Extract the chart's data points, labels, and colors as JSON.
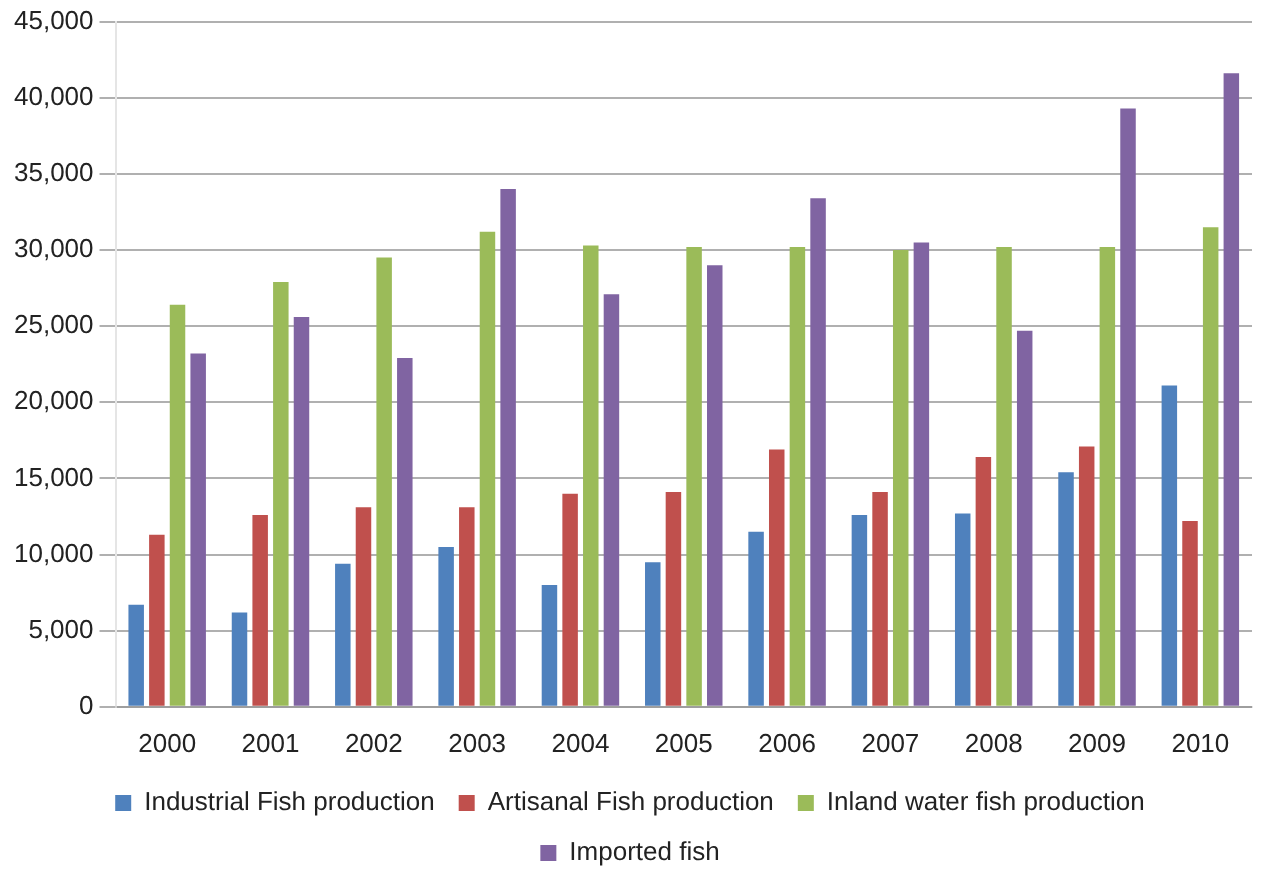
{
  "chart_data": {
    "type": "bar",
    "categories": [
      "2000",
      "2001",
      "2002",
      "2003",
      "2004",
      "2005",
      "2006",
      "2007",
      "2008",
      "2009",
      "2010"
    ],
    "series": [
      {
        "name": "Industrial Fish production",
        "color": "#4f81bd",
        "values": [
          6700,
          6200,
          9400,
          10500,
          8000,
          9500,
          11500,
          12600,
          12700,
          15400,
          21100
        ]
      },
      {
        "name": "Artisanal Fish production",
        "color": "#c0504d",
        "values": [
          11300,
          12600,
          13100,
          13100,
          14000,
          14100,
          16900,
          14100,
          16400,
          17100,
          12200
        ]
      },
      {
        "name": "Inland water fish production",
        "color": "#9bbb59",
        "values": [
          26400,
          27900,
          29500,
          31200,
          30300,
          30200,
          30200,
          30000,
          30200,
          30200,
          31500
        ]
      },
      {
        "name": "Imported fish",
        "color": "#8064a2",
        "values": [
          23200,
          25600,
          22900,
          34000,
          27100,
          29000,
          33400,
          30500,
          24700,
          39300,
          41600
        ]
      }
    ],
    "ylim": [
      0,
      45000
    ],
    "yticks": [
      0,
      {
        "value": 5000,
        "label": "5,000"
      },
      {
        "value": 10000,
        "label": "10,000"
      },
      {
        "value": 15000,
        "label": "15,000"
      },
      {
        "value": 20000,
        "label": "20,000"
      },
      {
        "value": 25000,
        "label": "25,000"
      },
      {
        "value": 30000,
        "label": "30,000"
      },
      {
        "value": 35000,
        "label": "35,000"
      },
      {
        "value": 40000,
        "label": "40,000"
      },
      {
        "value": 45000,
        "label": "45,000"
      }
    ],
    "grid": "y",
    "legend": "bottom"
  }
}
